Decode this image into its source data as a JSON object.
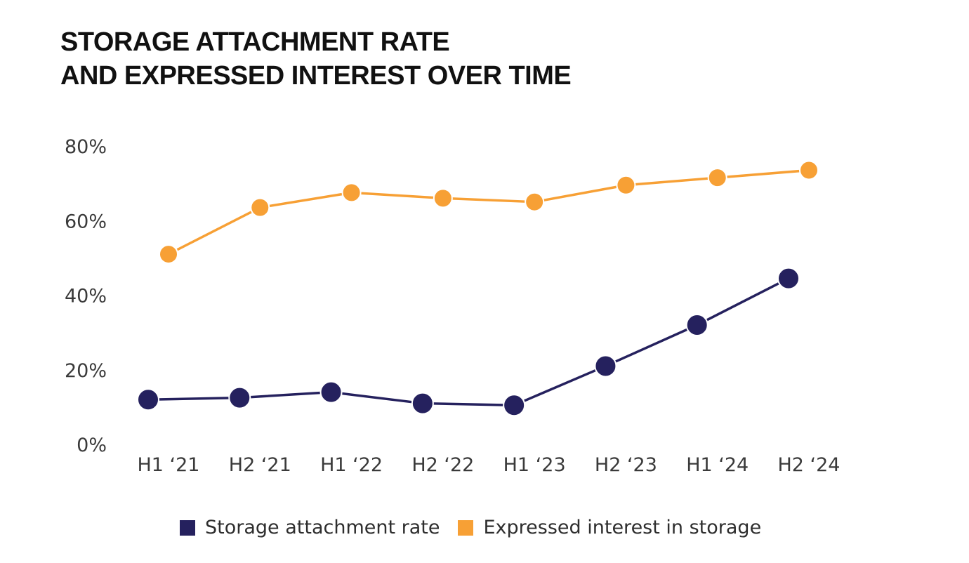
{
  "title_lines": [
    "STORAGE ATTACHMENT RATE",
    "AND EXPRESSED INTEREST OVER TIME"
  ],
  "chart_data": {
    "type": "line",
    "title": "STORAGE ATTACHMENT RATE AND EXPRESSED INTEREST OVER TIME",
    "x": [
      "H1 ‘21",
      "H2 ‘21",
      "H1 ‘22",
      "H2 ‘22",
      "H1 ‘23",
      "H2 ‘23",
      "H1 ‘24",
      "H2 ‘24"
    ],
    "series": [
      {
        "name": "Storage attachment rate",
        "color": "#25215e",
        "values": [
          12,
          12.5,
          14,
          11,
          10.5,
          21,
          32,
          44.5
        ]
      },
      {
        "name": "Expressed interest in storage",
        "color": "#f7a035",
        "values": [
          51,
          63.5,
          67.5,
          66,
          65,
          69.5,
          71.5,
          73.5
        ]
      }
    ],
    "y_ticks": [
      "0%",
      "20%",
      "40%",
      "60%",
      "80%"
    ],
    "ylim": [
      0,
      80
    ],
    "grid": false,
    "legend_position": "bottom"
  }
}
